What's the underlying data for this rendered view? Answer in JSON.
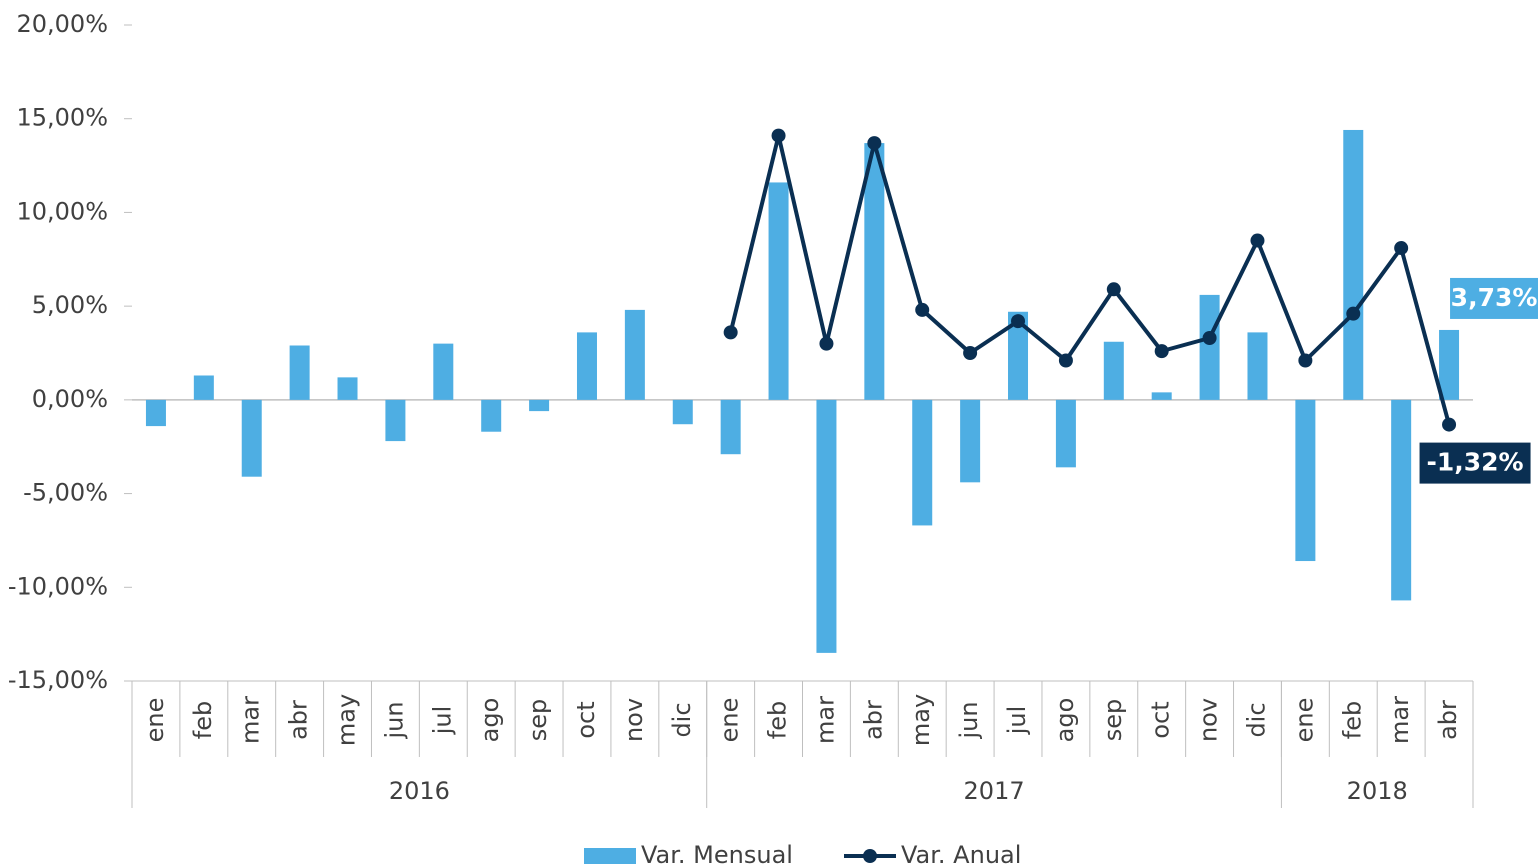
{
  "chart_data": {
    "type": "bar",
    "categories": [
      "ene",
      "feb",
      "mar",
      "abr",
      "may",
      "jun",
      "jul",
      "ago",
      "sep",
      "oct",
      "nov",
      "dic",
      "ene",
      "feb",
      "mar",
      "abr",
      "may",
      "jun",
      "jul",
      "ago",
      "sep",
      "oct",
      "nov",
      "dic",
      "ene",
      "feb",
      "mar",
      "abr"
    ],
    "groups": [
      {
        "label": "2016",
        "span": 12
      },
      {
        "label": "2017",
        "span": 12
      },
      {
        "label": "2018",
        "span": 4
      }
    ],
    "series": [
      {
        "name": "Var. Mensual",
        "type": "bar",
        "color": "#4eaee3",
        "values": [
          -1.4,
          1.3,
          -4.1,
          2.9,
          1.2,
          -2.2,
          3.0,
          -1.7,
          -0.6,
          3.6,
          4.8,
          -1.3,
          -2.9,
          11.6,
          -13.5,
          13.7,
          -6.7,
          -4.4,
          4.7,
          -3.6,
          3.1,
          0.4,
          5.6,
          3.6,
          -8.6,
          14.4,
          -10.7,
          3.73
        ],
        "value_labels": [
          null,
          null,
          null,
          null,
          null,
          null,
          null,
          null,
          null,
          null,
          null,
          null,
          null,
          null,
          null,
          null,
          null,
          null,
          null,
          null,
          null,
          null,
          null,
          null,
          null,
          null,
          null,
          "3,73%"
        ]
      },
      {
        "name": "Var. Anual",
        "type": "line",
        "color": "#0a2f52",
        "values": [
          null,
          null,
          null,
          null,
          null,
          null,
          null,
          null,
          null,
          null,
          null,
          null,
          3.6,
          14.1,
          3.0,
          13.7,
          4.8,
          2.5,
          4.2,
          2.1,
          5.9,
          2.6,
          3.3,
          8.5,
          2.1,
          4.6,
          8.1,
          -1.32
        ],
        "value_labels": [
          null,
          null,
          null,
          null,
          null,
          null,
          null,
          null,
          null,
          null,
          null,
          null,
          null,
          null,
          null,
          null,
          null,
          null,
          null,
          null,
          null,
          null,
          null,
          null,
          null,
          null,
          null,
          "-1,32%"
        ]
      }
    ],
    "ylim": [
      -15,
      20
    ],
    "yticks": [
      {
        "value": -15,
        "label": "-15,00%"
      },
      {
        "value": -10,
        "label": "-10,00%"
      },
      {
        "value": -5,
        "label": "-5,00%"
      },
      {
        "value": 0,
        "label": "0,00%"
      },
      {
        "value": 5,
        "label": "5,00%"
      },
      {
        "value": 10,
        "label": "10,00%"
      },
      {
        "value": 15,
        "label": "15,00%"
      },
      {
        "value": 20,
        "label": "20,00%"
      }
    ],
    "legend": "bottom"
  }
}
